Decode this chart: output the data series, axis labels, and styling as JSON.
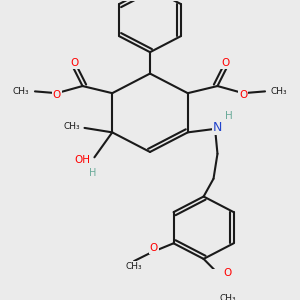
{
  "background_color": "#EBEBEB",
  "bond_color": "#1a1a1a",
  "bond_width": 1.5,
  "fig_width": 3.0,
  "fig_height": 3.0,
  "dpi": 100,
  "xlim": [
    0,
    300
  ],
  "ylim": [
    0,
    300
  ]
}
